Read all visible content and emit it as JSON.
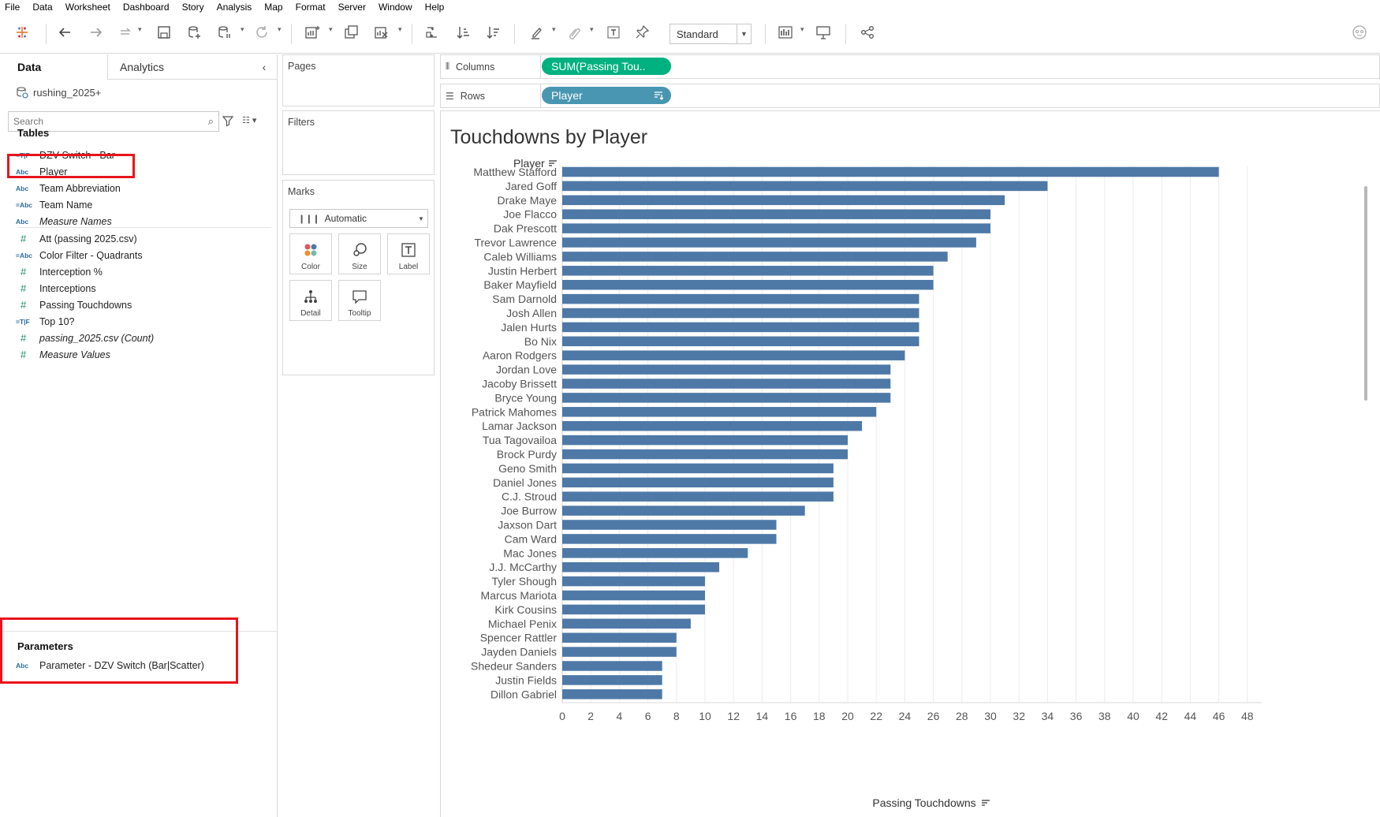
{
  "menu": [
    "File",
    "Data",
    "Worksheet",
    "Dashboard",
    "Story",
    "Analysis",
    "Map",
    "Format",
    "Server",
    "Window",
    "Help"
  ],
  "toolbar": {
    "fit_label": "Standard"
  },
  "data_pane": {
    "tab_data": "Data",
    "tab_analytics": "Analytics",
    "datasource": "rushing_2025+",
    "search_placeholder": "Search",
    "tables_title": "Tables",
    "fields": [
      {
        "icon": "=T|F",
        "label": "DZV Switch - Bar",
        "kind": "calc-bool"
      },
      {
        "icon": "Abc",
        "label": "Player",
        "kind": "dim"
      },
      {
        "icon": "Abc",
        "label": "Team Abbreviation",
        "kind": "dim"
      },
      {
        "icon": "=Abc",
        "label": "Team Name",
        "kind": "calc-dim"
      },
      {
        "icon": "Abc",
        "label": "Measure Names",
        "kind": "dim-italic"
      },
      {
        "icon": "#",
        "label": "Att (passing 2025.csv)",
        "kind": "num"
      },
      {
        "icon": "=Abc",
        "label": "Color Filter - Quadrants",
        "kind": "calc-dim"
      },
      {
        "icon": "#",
        "label": "Interception %",
        "kind": "num"
      },
      {
        "icon": "#",
        "label": "Interceptions",
        "kind": "num"
      },
      {
        "icon": "#",
        "label": "Passing Touchdowns",
        "kind": "num"
      },
      {
        "icon": "=T|F",
        "label": "Top 10?",
        "kind": "calc-bool"
      },
      {
        "icon": "#",
        "label": "passing_2025.csv (Count)",
        "kind": "num-italic"
      },
      {
        "icon": "#",
        "label": "Measure Values",
        "kind": "num-italic"
      }
    ],
    "parameters_title": "Parameters",
    "parameters": [
      {
        "icon": "Abc",
        "label": "Parameter - DZV Switch (Bar|Scatter)"
      }
    ]
  },
  "cards": {
    "pages": "Pages",
    "filters": "Filters",
    "marks": "Marks",
    "marks_type": "Automatic",
    "mark_buttons": [
      "Color",
      "Size",
      "Label",
      "Detail",
      "Tooltip"
    ]
  },
  "shelves": {
    "columns_label": "Columns",
    "columns_pill": "SUM(Passing Tou..",
    "rows_label": "Rows",
    "rows_pill": "Player"
  },
  "viz": {
    "title": "Touchdowns by Player",
    "row_header": "Player",
    "axis_title": "Passing Touchdowns"
  },
  "chart_data": {
    "type": "bar",
    "orientation": "horizontal",
    "title": "Touchdowns by Player",
    "xlabel": "Passing Touchdowns",
    "ylabel": "Player",
    "xlim": [
      0,
      49
    ],
    "xticks": [
      0,
      2,
      4,
      6,
      8,
      10,
      12,
      14,
      16,
      18,
      20,
      22,
      24,
      26,
      28,
      30,
      32,
      34,
      36,
      38,
      40,
      42,
      44,
      46,
      48
    ],
    "bar_color": "#4e79a7",
    "grid": "vertical",
    "categories": [
      "Matthew Stafford",
      "Jared Goff",
      "Drake Maye",
      "Joe Flacco",
      "Dak Prescott",
      "Trevor Lawrence",
      "Caleb Williams",
      "Justin Herbert",
      "Baker Mayfield",
      "Sam Darnold",
      "Josh Allen",
      "Jalen Hurts",
      "Bo Nix",
      "Aaron Rodgers",
      "Jordan Love",
      "Jacoby Brissett",
      "Bryce Young",
      "Patrick Mahomes",
      "Lamar Jackson",
      "Tua Tagovailoa",
      "Brock Purdy",
      "Geno Smith",
      "Daniel Jones",
      "C.J. Stroud",
      "Joe Burrow",
      "Jaxson Dart",
      "Cam Ward",
      "Mac Jones",
      "J.J. McCarthy",
      "Tyler Shough",
      "Marcus Mariota",
      "Kirk Cousins",
      "Michael Penix",
      "Spencer Rattler",
      "Jayden Daniels",
      "Shedeur Sanders",
      "Justin Fields",
      "Dillon Gabriel"
    ],
    "values": [
      46,
      34,
      31,
      30,
      30,
      29,
      27,
      26,
      26,
      25,
      25,
      25,
      25,
      24,
      23,
      23,
      23,
      22,
      21,
      20,
      20,
      19,
      19,
      19,
      17,
      15,
      15,
      13,
      11,
      10,
      10,
      10,
      9,
      8,
      8,
      7,
      7,
      7
    ]
  }
}
